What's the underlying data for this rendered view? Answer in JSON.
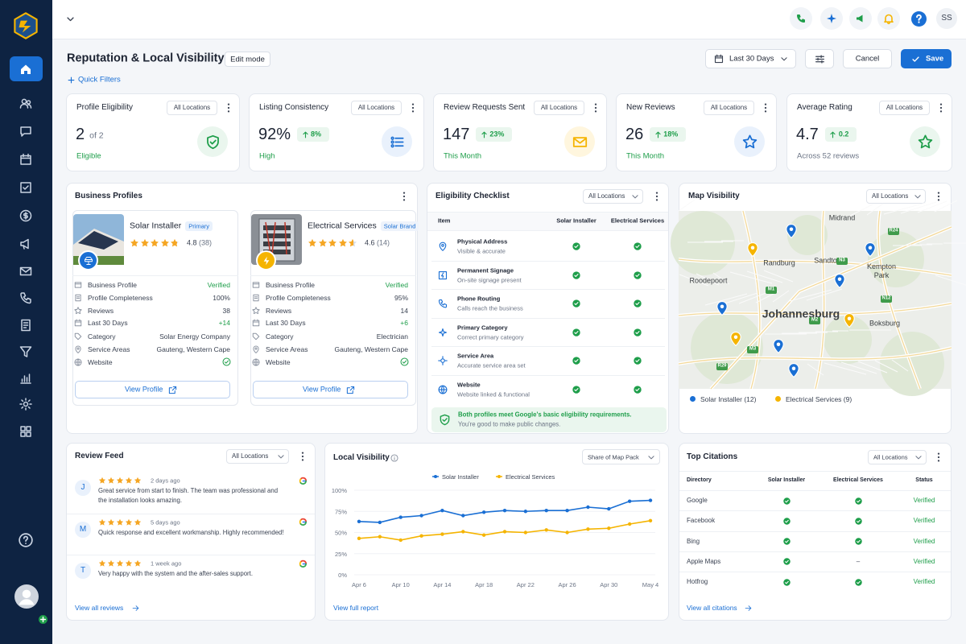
{
  "header": {
    "title": "Reputation & Local Visibility",
    "edit_mode": "Edit mode",
    "quick_filters": "Quick Filters",
    "date_range": "Last 30 Days",
    "cancel": "Cancel",
    "save": "Save",
    "user_initials": "SS"
  },
  "kpis": [
    {
      "label": "Profile Eligibility",
      "filter": "All Locations",
      "value": "2",
      "suffix": "of 2",
      "sub": "Eligible",
      "accent": "#1e9e4a",
      "icon_color": "#1e9e4a",
      "icon_bg": "#eaf6ee",
      "icon": "shield"
    },
    {
      "label": "Listing Consistency",
      "filter": "All Locations",
      "value": "92%",
      "change": "8%",
      "sub": "High",
      "accent": "#1e9e4a",
      "icon_color": "#1a6fd4",
      "icon_bg": "#e9f1fc",
      "icon": "list"
    },
    {
      "label": "Review Requests Sent",
      "filter": "All Locations",
      "value": "147",
      "change": "23%",
      "sub": "This Month",
      "accent": "#1e9e4a",
      "icon_color": "#f5b400",
      "icon_bg": "#fff6de",
      "icon": "mail"
    },
    {
      "label": "New Reviews",
      "filter": "All Locations",
      "value": "26",
      "change": "18%",
      "sub": "This Month",
      "accent": "#1e9e4a",
      "icon_color": "#1a6fd4",
      "icon_bg": "#e9f1fc",
      "icon": "star"
    },
    {
      "label": "Average Rating",
      "filter": "All Locations",
      "value": "4.7",
      "change": "0.2",
      "sub": "Across 52 reviews",
      "accent": "#6b7485",
      "icon_color": "#1e9e4a",
      "icon_bg": "#eaf6ee",
      "icon": "star"
    }
  ],
  "business_profiles": {
    "title": "Business Profiles",
    "profiles": [
      {
        "name": "Solar Installer",
        "badge": "Primary",
        "rating": "4.8",
        "reviews": "(38)",
        "button": "View Profile",
        "rows": [
          {
            "label": "Business Profile",
            "value": "Verified"
          },
          {
            "label": "Profile Completeness",
            "value": "100%"
          },
          {
            "label": "Reviews",
            "value": "38"
          },
          {
            "label": "Last 30 Days",
            "value": "+14"
          },
          {
            "label": "Category",
            "value": "Solar Energy Company"
          },
          {
            "label": "Service Areas",
            "value": "Gauteng, Western Cape"
          },
          {
            "label": "Website"
          }
        ]
      },
      {
        "name": "Electrical Services",
        "badge": "Solar Brand",
        "rating": "4.6",
        "reviews": "(14)",
        "button": "View Profile",
        "rows": [
          {
            "label": "Business Profile",
            "value": "Verified"
          },
          {
            "label": "Profile Completeness",
            "value": "95%"
          },
          {
            "label": "Reviews",
            "value": "14"
          },
          {
            "label": "Last 30 Days",
            "value": "+6"
          },
          {
            "label": "Category",
            "value": "Electrician"
          },
          {
            "label": "Service Areas",
            "value": "Gauteng, Western Cape"
          },
          {
            "label": "Website"
          }
        ]
      }
    ]
  },
  "checklist": {
    "title": "Eligibility Checklist",
    "filter": "All Locations",
    "columns": [
      "Item",
      "Solar Installer",
      "Electrical Services"
    ],
    "items": [
      {
        "title": "Physical Address",
        "desc": "Visible & accurate",
        "status": [
          true,
          true
        ]
      },
      {
        "title": "Permanent Signage",
        "desc": "On-site signage present",
        "status": [
          true,
          true
        ]
      },
      {
        "title": "Phone Routing",
        "desc": "Calls reach the business",
        "status": [
          true,
          true
        ]
      },
      {
        "title": "Primary Category",
        "desc": "Correct primary category",
        "status": [
          true,
          true
        ]
      },
      {
        "title": "Service Area",
        "desc": "Accurate service area set",
        "status": [
          true,
          true
        ]
      },
      {
        "title": "Website",
        "desc": "Website linked & functional",
        "status": [
          true,
          true
        ]
      }
    ],
    "footer_title": "Both profiles meet Google's basic eligibility requirements.",
    "footer_desc": "You're good to make public changes."
  },
  "map": {
    "title": "Map Visibility",
    "filter": "All Locations",
    "places": [
      "Midrand",
      "Randburg",
      "Sandton",
      "Kempton Park",
      "Roodepoort",
      "Johannesburg",
      "Boksburg"
    ],
    "roads": [
      "R24",
      "N3",
      "M1",
      "N12",
      "M2",
      "M3",
      "R29"
    ],
    "legend": [
      {
        "name": "Solar Installer (12)",
        "color": "#1a6fd4"
      },
      {
        "name": "Electrical Services (9)",
        "color": "#f5b400"
      }
    ]
  },
  "review_feed": {
    "title": "Review Feed",
    "filter": "All Locations",
    "reviews": [
      {
        "initial": "J",
        "time": "2 days ago",
        "text": "Great service from start to finish. The team was professional and the installation looks amazing."
      },
      {
        "initial": "M",
        "time": "5 days ago",
        "text": "Quick response and excellent workmanship. Highly recommended!"
      },
      {
        "initial": "T",
        "time": "1 week ago",
        "text": "Very happy with the system and the after-sales support."
      }
    ],
    "link": "View all reviews"
  },
  "chart_data": {
    "type": "line",
    "title": "Local Visibility",
    "filter": "Share of Map Pack",
    "link": "View full report",
    "categories": [
      "Apr 6",
      null,
      "Apr 10",
      null,
      "Apr 14",
      null,
      "Apr 18",
      null,
      "Apr 22",
      null,
      "Apr 26",
      null,
      "Apr 30",
      null,
      "May 4"
    ],
    "series": [
      {
        "name": "Solar Installer",
        "color": "#1a6fd4",
        "values": [
          63,
          62,
          68,
          70,
          76,
          70,
          74,
          76,
          75,
          76,
          76,
          80,
          78,
          87,
          88
        ]
      },
      {
        "name": "Electrical Services",
        "color": "#f5b400",
        "values": [
          43,
          45,
          41,
          46,
          48,
          51,
          47,
          51,
          50,
          53,
          50,
          54,
          55,
          60,
          64
        ]
      }
    ],
    "ylim": [
      0,
      100
    ],
    "yticks": [
      {
        "value": 0,
        "label": "0%"
      },
      {
        "value": 25,
        "label": "25%"
      },
      {
        "value": 50,
        "label": "50%"
      },
      {
        "value": 75,
        "label": "75%"
      },
      {
        "value": 100,
        "label": "100%"
      }
    ],
    "grid": true,
    "legend": "top"
  },
  "citations": {
    "title": "Top Citations",
    "filter": "All Locations",
    "columns": [
      "Directory",
      "Solar Installer",
      "Electrical Services",
      "Status"
    ],
    "rows": [
      {
        "name": "Google",
        "solar": true,
        "electrical": true,
        "status": "Verified"
      },
      {
        "name": "Facebook",
        "solar": true,
        "electrical": true,
        "status": "Verified"
      },
      {
        "name": "Bing",
        "solar": true,
        "electrical": true,
        "status": "Verified"
      },
      {
        "name": "Apple Maps",
        "solar": true,
        "electrical": "–",
        "status": "Verified"
      },
      {
        "name": "Hotfrog",
        "solar": true,
        "electrical": true,
        "status": "Verified"
      }
    ],
    "link": "View all citations"
  }
}
